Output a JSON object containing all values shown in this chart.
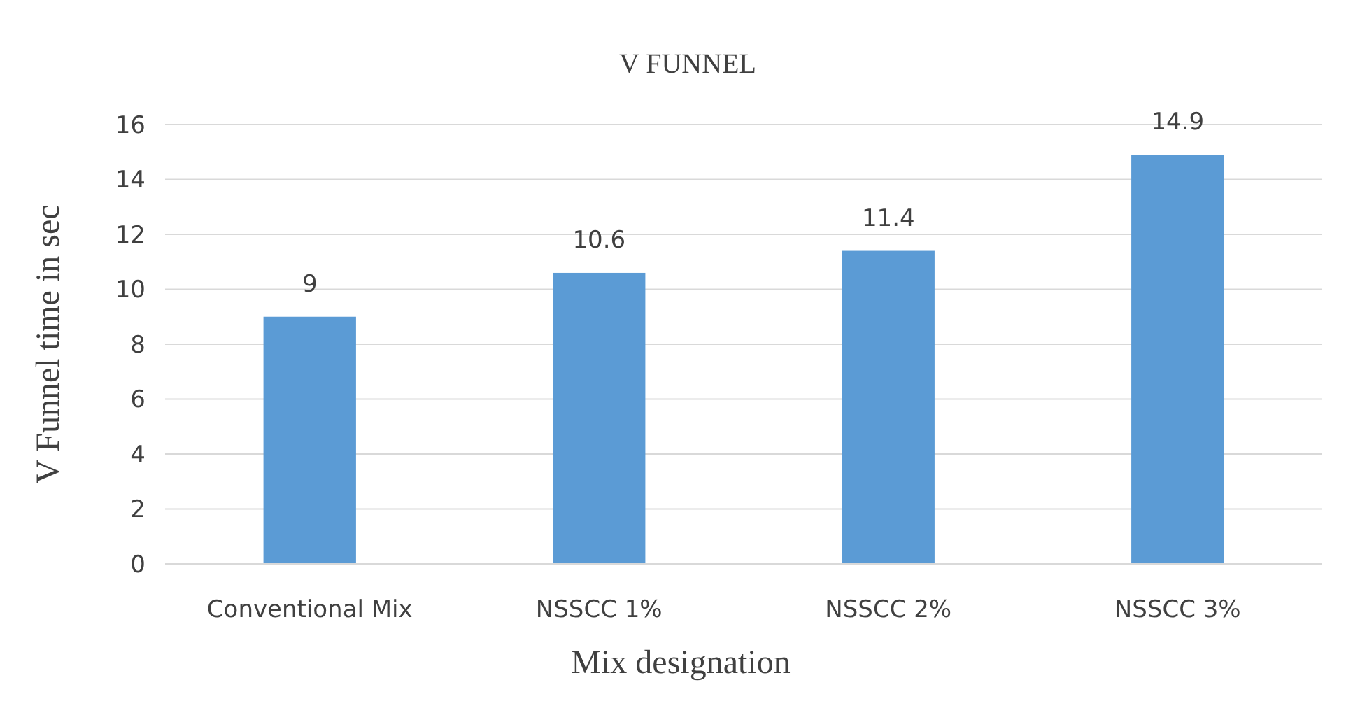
{
  "chart_data": {
    "type": "bar",
    "title": "V FUNNEL",
    "xlabel": "Mix designation",
    "ylabel": "V Funnel time in sec",
    "categories": [
      "Conventional Mix",
      "NSSCC 1%",
      "NSSCC 2%",
      "NSSCC 3%"
    ],
    "values": [
      9,
      10.6,
      11.4,
      14.9
    ],
    "color": "#5b9bd5",
    "ylim": [
      0,
      16
    ],
    "yticks": [
      0,
      2,
      4,
      6,
      8,
      10,
      12,
      14,
      16
    ],
    "grid": "y",
    "data_labels": true
  }
}
